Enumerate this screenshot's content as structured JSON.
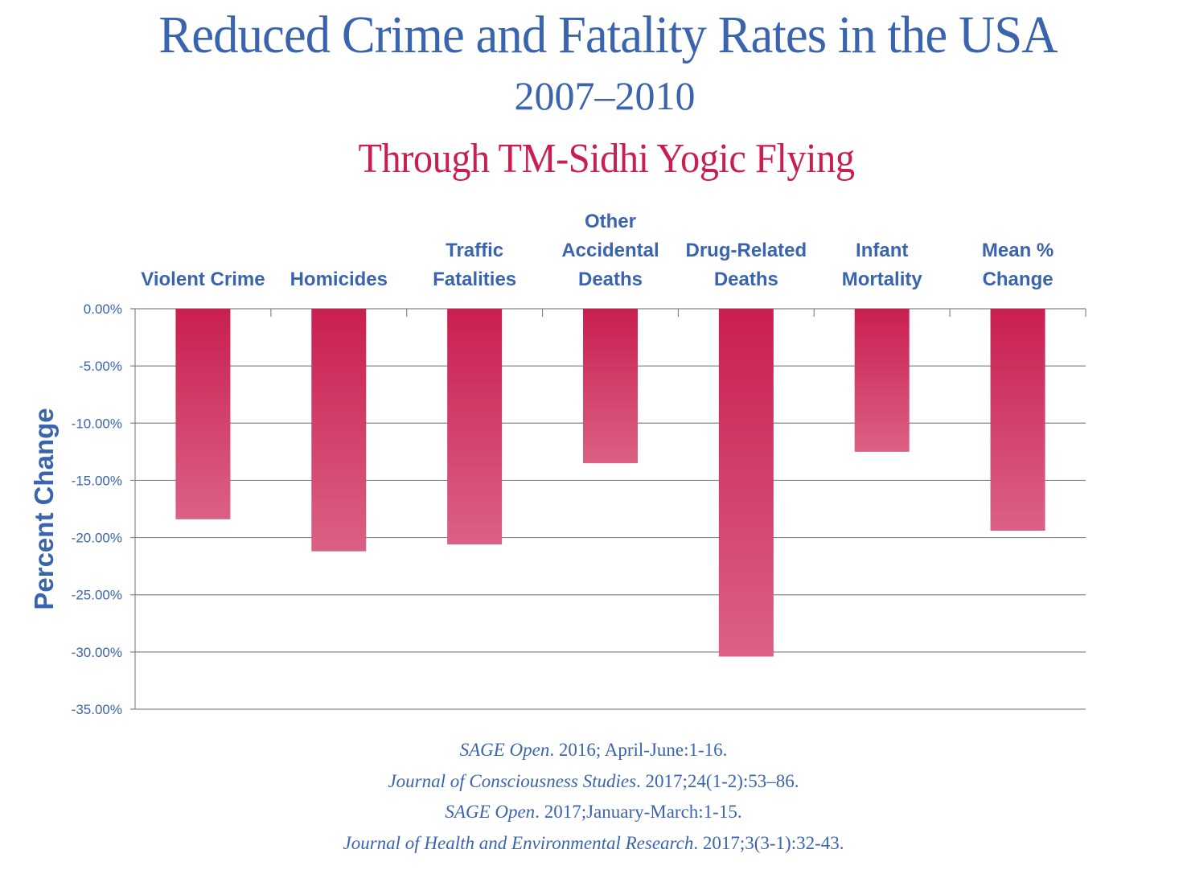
{
  "header": {
    "title": "Reduced Crime and Fatality Rates in the USA",
    "years": "2007–2010",
    "subtitle": "Through TM-Sidhi Yogic Flying"
  },
  "colors": {
    "title_blue": "#3A64AD",
    "subtitle_red": "#C71F4F",
    "bar_top": "#C91F51",
    "bar_bottom": "#DB6184",
    "gridline": "#888888"
  },
  "chart_data": {
    "type": "bar",
    "title": "Reduced Crime and Fatality Rates in the USA",
    "subtitle": "2007–2010 — Through TM-Sidhi Yogic Flying",
    "xlabel": "",
    "ylabel": "Percent Change",
    "x_labels_position": "top",
    "categories": [
      [
        "Violent Crime"
      ],
      [
        "Homicides"
      ],
      [
        "Traffic",
        "Fatalities"
      ],
      [
        "Other",
        "Accidental",
        "Deaths"
      ],
      [
        "Drug-Related",
        "Deaths"
      ],
      [
        "Infant",
        "Mortality"
      ],
      [
        "Mean %",
        "Change"
      ]
    ],
    "category_names": [
      "Violent Crime",
      "Homicides",
      "Traffic Fatalities",
      "Other Accidental Deaths",
      "Drug-Related Deaths",
      "Infant Mortality",
      "Mean % Change"
    ],
    "values": [
      -18.4,
      -21.2,
      -20.6,
      -13.5,
      -30.4,
      -12.5,
      -19.4
    ],
    "unit": "%",
    "ylim": [
      -35,
      0
    ],
    "yticks": [
      0,
      -5,
      -10,
      -15,
      -20,
      -25,
      -30,
      -35
    ],
    "ytick_labels": [
      "0.00%",
      "-5.00%",
      "-10.00%",
      "-15.00%",
      "-20.00%",
      "-25.00%",
      "-30.00%",
      "-35.00%"
    ],
    "grid": true,
    "legend": "none"
  },
  "references": [
    {
      "journal": "SAGE Open",
      "rest": ". 2016; April-June:1-16."
    },
    {
      "journal": "Journal of Consciousness Studies",
      "rest": ". 2017;24(1-2):53–86."
    },
    {
      "journal": "SAGE Open",
      "rest": ". 2017;January-March:1-15."
    },
    {
      "journal": "Journal of Health and Environmental Research",
      "rest": ". 2017;3(3-1):32-43."
    }
  ]
}
